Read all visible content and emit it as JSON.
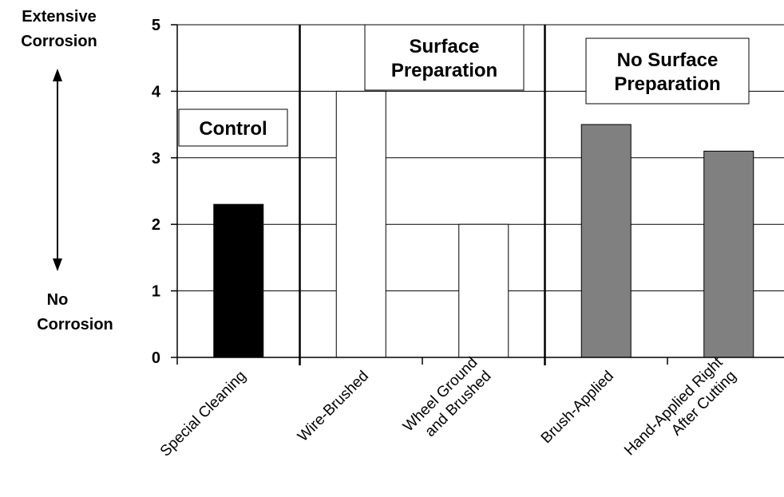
{
  "chart_data": {
    "type": "bar",
    "title": "",
    "xlabel": "",
    "ylabel": "",
    "ylim": [
      0,
      5
    ],
    "yticks": [
      0,
      1,
      2,
      3,
      4,
      5
    ],
    "grid": true,
    "categories": [
      "Special Cleaning",
      "Wire-Brushed",
      "Wheel Ground and Brushed",
      "Brush-Applied",
      "Hand-Applied Right After Cutting"
    ],
    "category_lines": [
      [
        "Special Cleaning"
      ],
      [
        "Wire-Brushed"
      ],
      [
        "Wheel Ground",
        "and Brushed"
      ],
      [
        "Brush-Applied"
      ],
      [
        "Hand-Applied Right",
        "After Cutting"
      ]
    ],
    "values": [
      2.3,
      4.0,
      2.0,
      3.5,
      3.1
    ],
    "bar_colors": [
      "#000000",
      "#ffffff",
      "#ffffff",
      "#808080",
      "#808080"
    ],
    "groups": [
      {
        "label_lines": [
          "Control"
        ],
        "categories": [
          0
        ]
      },
      {
        "label_lines": [
          "Surface",
          "Preparation"
        ],
        "categories": [
          1,
          2
        ]
      },
      {
        "label_lines": [
          "No Surface",
          "Preparation"
        ],
        "categories": [
          3,
          4
        ]
      }
    ],
    "scale_top_label": [
      "Extensive",
      "Corrosion"
    ],
    "scale_bottom_label": [
      "No",
      "Corrosion"
    ]
  }
}
